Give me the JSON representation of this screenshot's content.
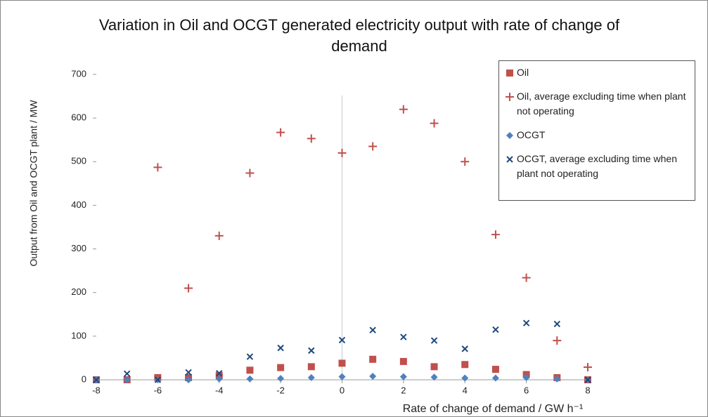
{
  "chart_data": {
    "type": "scatter",
    "title": "Variation in Oil and OCGT generated electricity output with rate of change of demand",
    "x_label": "Rate of change of demand / GW h⁻¹",
    "y_label": "Output from Oil and OCGT plant / MW",
    "x": [
      -8,
      -7,
      -6,
      -5,
      -4,
      -3,
      -2,
      -1,
      0,
      1,
      2,
      3,
      4,
      5,
      6,
      7,
      8
    ],
    "series": [
      {
        "name": "Oil",
        "color": "#c0504d",
        "marker": "square",
        "values": [
          0,
          0,
          5,
          5,
          10,
          22,
          28,
          30,
          38,
          47,
          42,
          30,
          35,
          24,
          12,
          5,
          0
        ]
      },
      {
        "name": "Oil, average excluding time when plant not operating",
        "color": "#c0504d",
        "marker": "plus",
        "values": [
          null,
          null,
          487,
          210,
          330,
          474,
          567,
          553,
          520,
          535,
          620,
          588,
          500,
          333,
          234,
          90,
          29
        ]
      },
      {
        "name": "OCGT",
        "color": "#4f81bd",
        "marker": "diamond",
        "values": [
          0,
          0,
          0,
          0,
          2,
          2,
          3,
          5,
          7,
          8,
          7,
          6,
          4,
          4,
          5,
          2,
          0
        ]
      },
      {
        "name": "OCGT, average excluding time when plant not operating",
        "color": "#1f497d",
        "marker": "cross",
        "values": [
          0,
          14,
          0,
          17,
          15,
          53,
          73,
          67,
          91,
          114,
          98,
          90,
          71,
          115,
          130,
          128,
          0
        ]
      }
    ],
    "xlim": [
      -8,
      8
    ],
    "xticks": [
      -8,
      -6,
      -4,
      -2,
      0,
      2,
      4,
      6,
      8
    ],
    "ylim": [
      0,
      700
    ],
    "yticks": [
      0,
      100,
      200,
      300,
      400,
      500,
      600,
      700
    ],
    "legend": "upper-right"
  }
}
